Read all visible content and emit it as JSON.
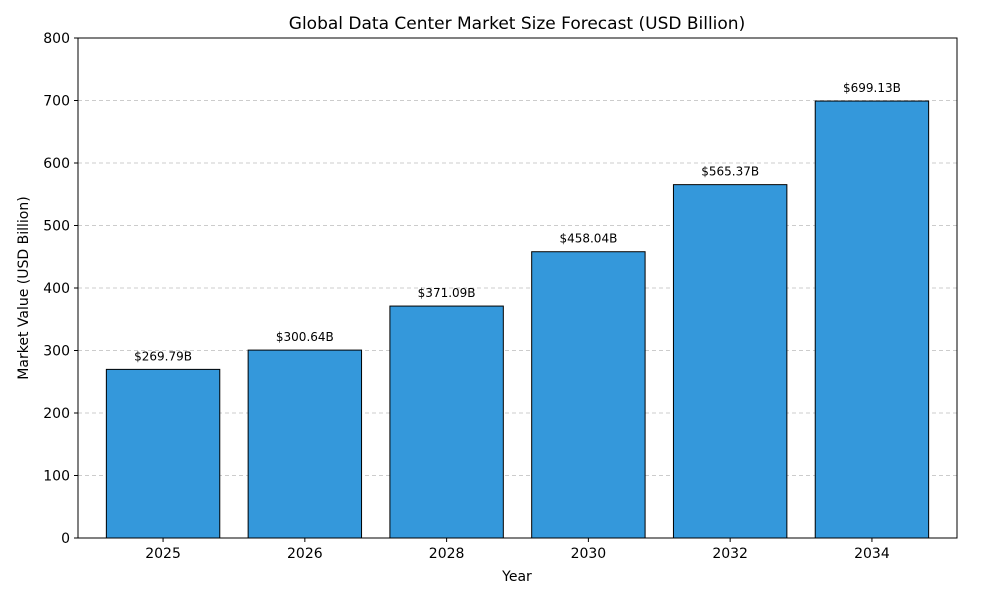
{
  "chart_data": {
    "type": "bar",
    "title": "Global Data Center Market Size Forecast (USD Billion)",
    "xlabel": "Year",
    "ylabel": "Market Value (USD Billion)",
    "categories": [
      "2025",
      "2026",
      "2028",
      "2030",
      "2032",
      "2034"
    ],
    "values": [
      269.79,
      300.64,
      371.09,
      458.04,
      565.37,
      699.13
    ],
    "data_labels": [
      "$269.79B",
      "$300.64B",
      "$371.09B",
      "$458.04B",
      "$565.37B",
      "$699.13B"
    ],
    "ylim": [
      0,
      800
    ],
    "yticks": [
      0,
      100,
      200,
      300,
      400,
      500,
      600,
      700,
      800
    ],
    "grid": "y, dashed",
    "bar_color": "#3498db",
    "edge_color": "#000000"
  }
}
